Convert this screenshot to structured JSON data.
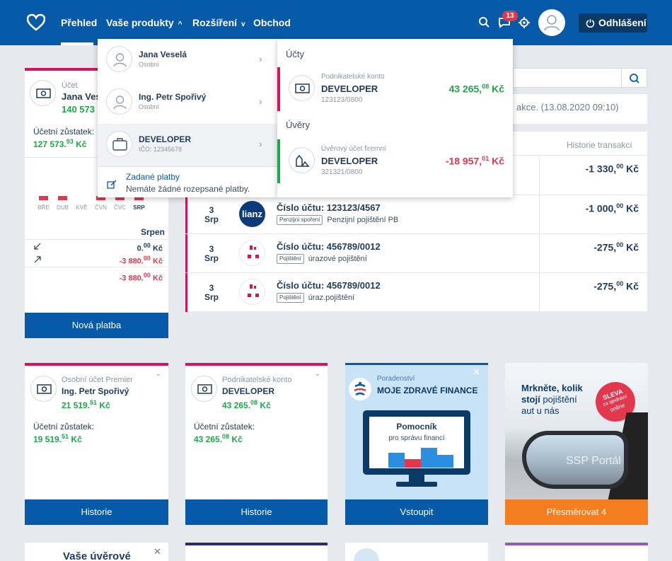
{
  "nav": {
    "items": [
      "Přehled",
      "Vaše produkty",
      "Rozšíření",
      "Obchod"
    ],
    "notifications_count": "13",
    "logout_label": "Odhlášení"
  },
  "dropdown": {
    "persons": [
      {
        "name": "Jana Veselá",
        "type": "Osobní"
      },
      {
        "name": "Ing. Petr Spořivý",
        "type": "Osobní"
      },
      {
        "name": "DEVELOPER",
        "type": "IČO: 12345678"
      }
    ],
    "payments_title": "Zadané platby",
    "payments_text": "Nemáte žádné rozepsané platby.",
    "accounts_heading": "Účty",
    "account": {
      "type": "Podnikatelské konto",
      "name": "DEVELOPER",
      "number": "123123/0800",
      "amount_int": "43 265,",
      "amount_dec": "08",
      "currency": "Kč"
    },
    "loans_heading": "Úvěry",
    "loan": {
      "type": "Úvěrový účet firemní",
      "name": "DEVELOPER",
      "number": "321321/0800",
      "amount_int": "-18 957,",
      "amount_dec": "01",
      "currency": "Kč"
    }
  },
  "left_card": {
    "type": "Účet",
    "name": "Jana Ves",
    "balance_partial": "140 573",
    "ledger_label": "Účetní zůstatek:",
    "ledger_int": "127 573.",
    "ledger_dec": "93",
    "currency": "Kč",
    "months": [
      "BŘE",
      "DUB",
      "KVĚ",
      "ČVN",
      "ČVC",
      "SRP"
    ],
    "bar_values": [
      1,
      1,
      0,
      1,
      1,
      1
    ],
    "month_title": "Srpen",
    "income_int": "0.",
    "income_dec": "00",
    "expense_int": "-3 880.",
    "expense_dec": "00",
    "total_int": "-3 880.",
    "total_dec": "00",
    "new_payment": "Nová platba"
  },
  "right_panel": {
    "info_text": "akce. (13.08.2020 09:10)",
    "history_label": "Historie transakcí",
    "first_amount": "-1 330,",
    "first_amount_dec": "00",
    "currency": "Kč",
    "transactions": [
      {
        "day": "3",
        "month": "Srp",
        "logo": "lianz",
        "account": "Číslo účtu: 123123/4567",
        "tag": "Penzijní spoření",
        "desc": "Penzijní pojištění PB",
        "amount_int": "-1 000,",
        "amount_dec": "00"
      },
      {
        "day": "3",
        "month": "Srp",
        "logo": "",
        "account": "Číslo účtu: 456789/0012",
        "tag": "Pojištění",
        "desc": "úrazové pojištění",
        "amount_int": "-275,",
        "amount_dec": "00"
      },
      {
        "day": "3",
        "month": "Srp",
        "logo": "",
        "account": "Číslo účtu: 456789/0012",
        "tag": "Pojištění",
        "desc": "úraz.pojištění",
        "amount_int": "-275,",
        "amount_dec": "00"
      }
    ]
  },
  "tiles": [
    {
      "type": "Osobní účet Premier",
      "name": "Ing. Petr Spořivý",
      "balance_int": "21 519.",
      "balance_dec": "51",
      "ledger_label": "Účetní zůstatek:",
      "ledger_int": "19 519.",
      "ledger_dec": "51",
      "currency": "Kč",
      "button": "Historie"
    },
    {
      "type": "Podnikatelské konto",
      "name": "DEVELOPER",
      "balance_int": "43 265.",
      "balance_dec": "08",
      "ledger_label": "Účetní zůstatek:",
      "ledger_int": "43 265.",
      "ledger_dec": "08",
      "currency": "Kč",
      "button": "Historie"
    }
  ],
  "promo1": {
    "kicker": "Poradenství",
    "title": "MOJE ZDRAVÉ FINANCE",
    "screen_title": "Pomocník",
    "screen_sub": "pro správu financí",
    "button": "Vstoupit"
  },
  "promo2": {
    "line1": "Mrkněte, kolik",
    "line2a": "stojí",
    "line2b": " pojištění",
    "line3": "aut u nás",
    "badge1": "SLEVA",
    "badge2": "za sjednání",
    "badge3": "online",
    "watermark": "SSP Portál",
    "button": "Přesměrovat 4"
  },
  "bottom": {
    "partial_title": "Vaše úvěrové"
  },
  "colors": {
    "brand": "#075aa8",
    "accent_pink": "#d6135b",
    "accent_green": "#1fa84a",
    "accent_red": "#e1384e",
    "orange": "#f47d20"
  }
}
